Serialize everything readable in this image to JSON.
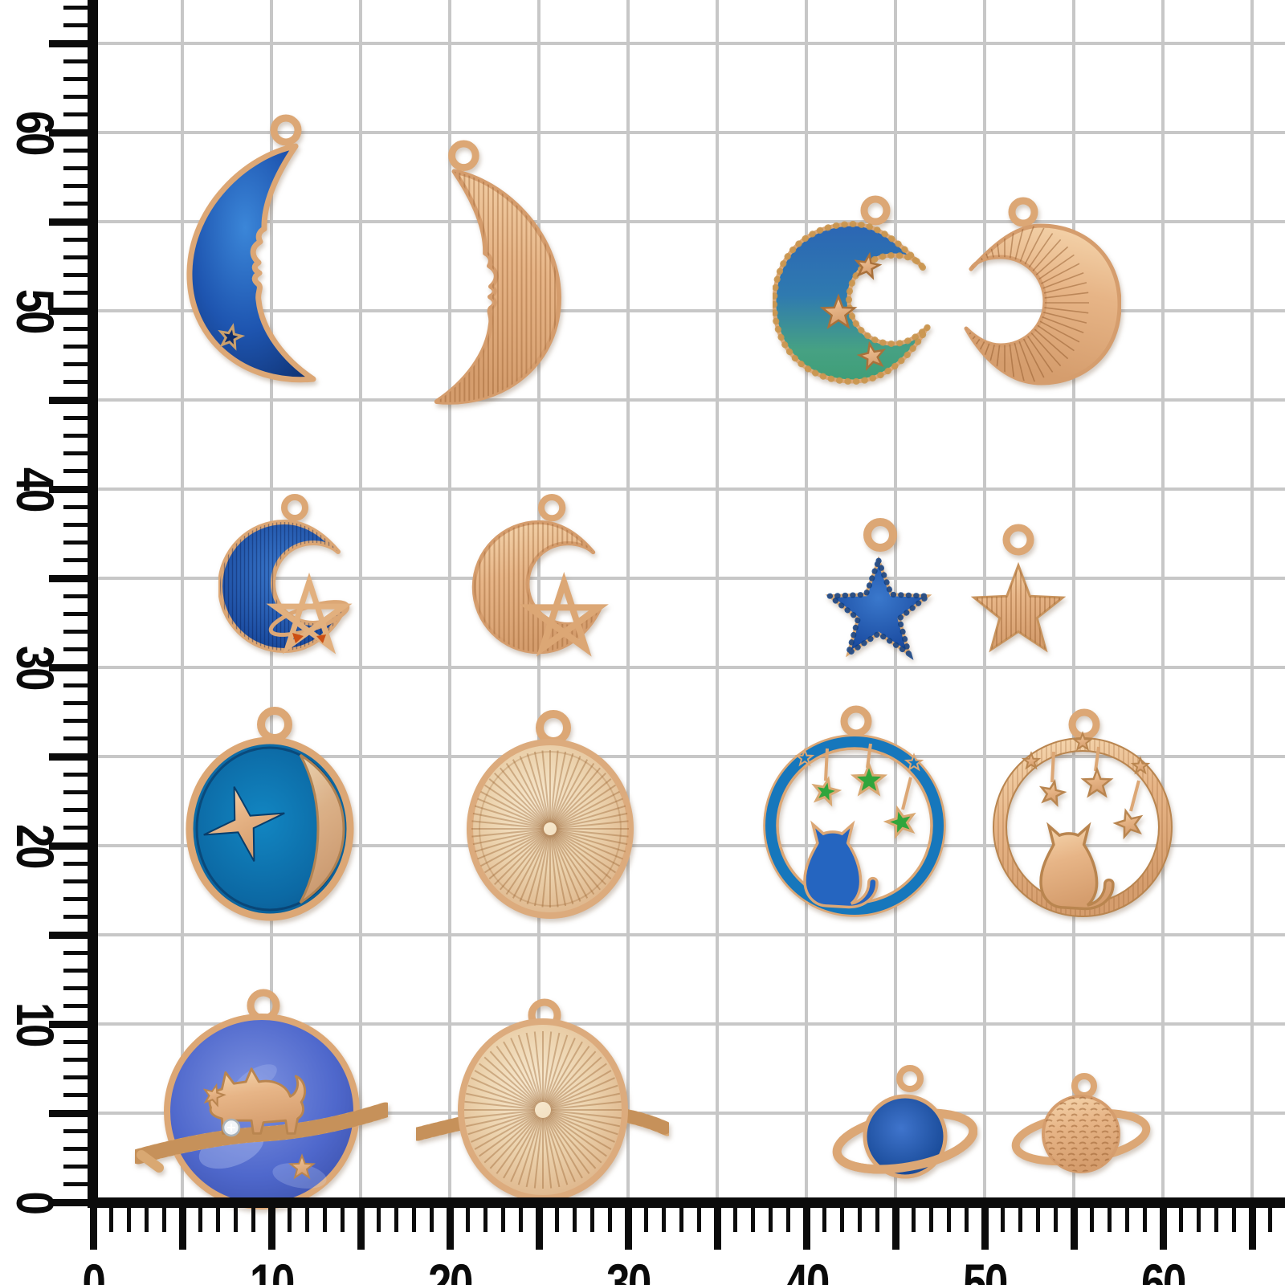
{
  "page": {
    "description": "Product photo: 16 celestial jewelry charms (blue enamel and gold pairs) on a millimeter measuring grid",
    "background_color": "#ffffff"
  },
  "ruler": {
    "grid_color": "#c7c7c7",
    "axis_color": "#0b0b0b",
    "x_axis": {
      "tick_labels": [
        "0",
        "10",
        "20",
        "30",
        "40",
        "50",
        "60"
      ]
    },
    "y_axis": {
      "tick_labels": [
        "0",
        "10",
        "20",
        "30",
        "40",
        "50",
        "60"
      ]
    }
  },
  "charms": [
    {
      "id": "moon-face-blue",
      "name": "crescent moon with face charm",
      "variant": "blue enamel",
      "row": 1,
      "colors": {
        "enamel": "#1e55b0",
        "metal": "#dca775"
      }
    },
    {
      "id": "moon-face-gold",
      "name": "crescent moon with face charm",
      "variant": "gold",
      "row": 1,
      "colors": {
        "metal": "#e7b587"
      }
    },
    {
      "id": "moon-stars-enamel",
      "name": "crescent moon with stars charm",
      "variant": "blue-green enamel",
      "row": 1,
      "colors": {
        "enamel_top": "#2b66b4",
        "enamel_bottom": "#46a183",
        "metal": "#dca775"
      }
    },
    {
      "id": "moon-sunburst-gold",
      "name": "crescent moon sunburst charm",
      "variant": "gold",
      "row": 1,
      "colors": {
        "metal": "#e7b587"
      }
    },
    {
      "id": "moon-pentagram-blue",
      "name": "moon and pentagram charm",
      "variant": "blue enamel",
      "row": 2,
      "colors": {
        "enamel": "#1d4fa4",
        "metal": "#dca775",
        "accent": "#cc4f14"
      }
    },
    {
      "id": "moon-pentagram-gold",
      "name": "moon and pentagram charm",
      "variant": "gold",
      "row": 2,
      "colors": {
        "metal": "#e7b587"
      }
    },
    {
      "id": "star-blue",
      "name": "five point star charm",
      "variant": "blue enamel",
      "row": 2,
      "colors": {
        "enamel": "#1d4fa4",
        "metal": "#dca775"
      }
    },
    {
      "id": "star-gold",
      "name": "five point star charm",
      "variant": "gold",
      "row": 2,
      "colors": {
        "metal": "#e7b587"
      }
    },
    {
      "id": "medallion-moon-star-blue",
      "name": "round medallion with moon and sparkle star",
      "variant": "blue enamel",
      "row": 3,
      "colors": {
        "enamel": "#0c69a4",
        "metal": "#dca775"
      }
    },
    {
      "id": "medallion-gold",
      "name": "round sunburst medallion",
      "variant": "gold",
      "row": 3,
      "colors": {
        "metal": "#ecd3ae"
      }
    },
    {
      "id": "cat-ring-blue",
      "name": "cat in circle with hanging stars charm",
      "variant": "blue and green enamel",
      "row": 3,
      "colors": {
        "ring": "#1677bc",
        "cat": "#2565c0",
        "stars": "#2fa53c",
        "metal": "#dca775"
      }
    },
    {
      "id": "cat-ring-gold",
      "name": "cat in circle with hanging stars charm",
      "variant": "gold",
      "row": 3,
      "colors": {
        "metal": "#e7b587"
      }
    },
    {
      "id": "planet-cat-blue",
      "name": "planet with cat on branch charm",
      "variant": "blue enamel with rhinestone",
      "row": 4,
      "colors": {
        "enamel": "#4f68cc",
        "metal": "#dca775",
        "rhinestone": "#f2f5f8"
      }
    },
    {
      "id": "planet-medallion-gold",
      "name": "planet medallion with branch ring",
      "variant": "gold",
      "row": 4,
      "colors": {
        "metal": "#ecd3ae"
      }
    },
    {
      "id": "saturn-small-blue",
      "name": "small ringed planet charm",
      "variant": "blue enamel",
      "row": 4,
      "colors": {
        "enamel": "#1d4f9e",
        "metal": "#dca775"
      }
    },
    {
      "id": "saturn-small-gold",
      "name": "small ringed planet charm",
      "variant": "gold",
      "row": 4,
      "colors": {
        "metal": "#e7b587"
      }
    }
  ]
}
